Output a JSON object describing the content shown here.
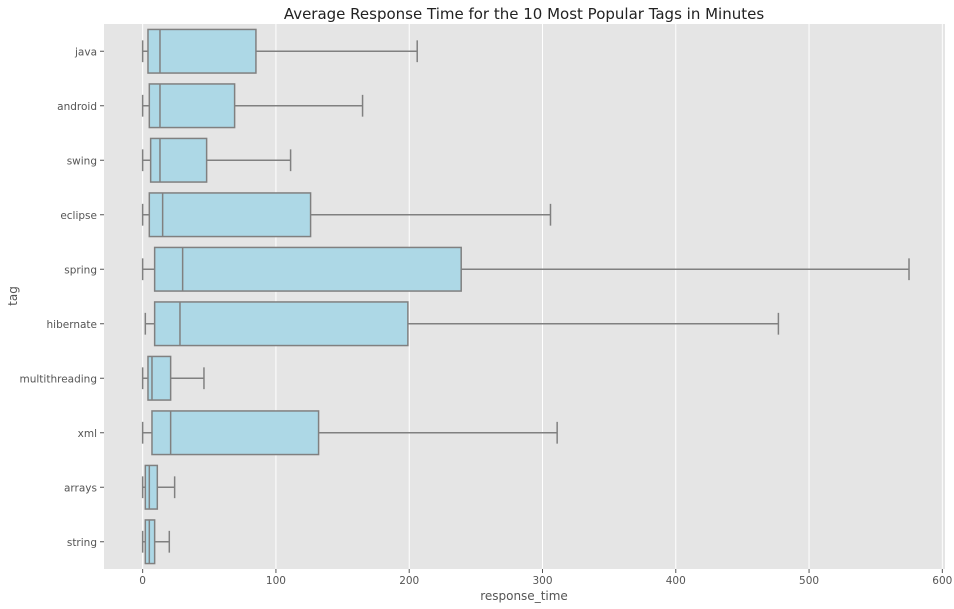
{
  "chart_data": {
    "type": "boxplot",
    "orientation": "horizontal",
    "title": "Average Response Time for the 10 Most Popular Tags in Minutes",
    "xlabel": "response_time",
    "ylabel": "tag",
    "xlim": [
      -29,
      602
    ],
    "xticks": [
      0,
      100,
      200,
      300,
      400,
      500,
      600
    ],
    "grid": true,
    "background_color": "#e5e5e5",
    "grid_color": "#ffffff",
    "box_fill_color": "#add8e6",
    "line_color": "#808080",
    "categories": [
      "java",
      "android",
      "swing",
      "eclipse",
      "spring",
      "hibernate",
      "multithreading",
      "xml",
      "arrays",
      "string"
    ],
    "boxes": [
      {
        "tag": "java",
        "whisker_low": 0,
        "q1": 4,
        "median": 13,
        "q3": 85,
        "whisker_high": 206
      },
      {
        "tag": "android",
        "whisker_low": 0,
        "q1": 5,
        "median": 13,
        "q3": 69,
        "whisker_high": 165
      },
      {
        "tag": "swing",
        "whisker_low": 0,
        "q1": 6,
        "median": 13,
        "q3": 48,
        "whisker_high": 111
      },
      {
        "tag": "eclipse",
        "whisker_low": 0,
        "q1": 5,
        "median": 15,
        "q3": 126,
        "whisker_high": 306
      },
      {
        "tag": "spring",
        "whisker_low": 0,
        "q1": 9,
        "median": 30,
        "q3": 239,
        "whisker_high": 575
      },
      {
        "tag": "hibernate",
        "whisker_low": 2,
        "q1": 9,
        "median": 28,
        "q3": 199,
        "whisker_high": 477
      },
      {
        "tag": "multithreading",
        "whisker_low": 0,
        "q1": 4,
        "median": 7,
        "q3": 21,
        "whisker_high": 46
      },
      {
        "tag": "xml",
        "whisker_low": 0,
        "q1": 7,
        "median": 21,
        "q3": 132,
        "whisker_high": 311
      },
      {
        "tag": "arrays",
        "whisker_low": 0,
        "q1": 2,
        "median": 5,
        "q3": 11,
        "whisker_high": 24
      },
      {
        "tag": "string",
        "whisker_low": 0,
        "q1": 2,
        "median": 5,
        "q3": 9,
        "whisker_high": 20
      }
    ]
  }
}
